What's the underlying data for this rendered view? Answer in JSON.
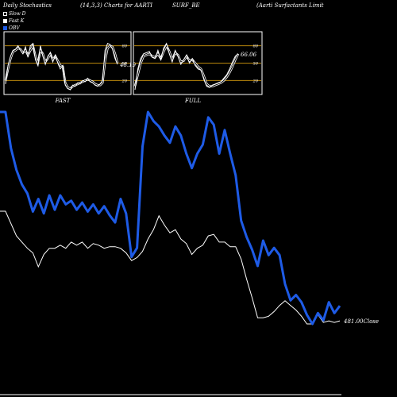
{
  "header": {
    "left": "Daily Stochastics",
    "params": "(14,3,3) Charts for AARTI",
    "symbol": "SURF_BE",
    "company": "(Aarti  Surfactants Limit"
  },
  "legend": [
    {
      "label": "Slow  D",
      "color": "#000000"
    },
    {
      "label": "Fast K",
      "color": "#ffffff"
    },
    {
      "label": "OBV",
      "color": "#1e5be6"
    }
  ],
  "colors": {
    "background": "#000000",
    "obv": "#1e5be6",
    "price": "#ffffff",
    "level_line": "#b8860b"
  },
  "chart_data": [
    {
      "type": "line",
      "title": "FAST",
      "ylim": [
        0,
        100
      ],
      "yticks": [
        80,
        50,
        20
      ],
      "levels": [
        80,
        50,
        20
      ],
      "value_label": "48.19",
      "series": [
        {
          "name": "Slow  D",
          "values": [
            20,
            40,
            58,
            70,
            72,
            76,
            74,
            68,
            72,
            64,
            72,
            80,
            62,
            50,
            72,
            66,
            52,
            58,
            66,
            56,
            62,
            54,
            46,
            44,
            16,
            8,
            6,
            10,
            12,
            14,
            16,
            18,
            20,
            22,
            20,
            18,
            14,
            12,
            12,
            16,
            54,
            76,
            80,
            78,
            66,
            50
          ]
        },
        {
          "name": "Fast K",
          "values": [
            14,
            46,
            62,
            72,
            74,
            80,
            72,
            66,
            78,
            60,
            80,
            84,
            56,
            46,
            80,
            62,
            48,
            62,
            68,
            52,
            64,
            50,
            40,
            46,
            12,
            6,
            4,
            12,
            10,
            16,
            14,
            20,
            18,
            24,
            18,
            16,
            12,
            10,
            14,
            20,
            72,
            84,
            82,
            74,
            58,
            48
          ]
        }
      ]
    },
    {
      "type": "line",
      "title": "FULL",
      "ylim": [
        0,
        100
      ],
      "yticks": [
        80,
        50,
        20
      ],
      "levels": [
        80,
        50,
        20
      ],
      "value_label": "66.06",
      "series": [
        {
          "name": "Slow  D",
          "values": [
            10,
            30,
            50,
            62,
            64,
            66,
            62,
            60,
            66,
            58,
            70,
            80,
            70,
            56,
            68,
            64,
            52,
            54,
            62,
            54,
            56,
            50,
            44,
            40,
            28,
            14,
            10,
            10,
            12,
            14,
            16,
            20,
            26,
            34,
            44,
            56,
            66
          ]
        },
        {
          "name": "Fast K",
          "values": [
            4,
            40,
            58,
            66,
            68,
            70,
            60,
            58,
            72,
            56,
            76,
            84,
            66,
            52,
            72,
            62,
            48,
            56,
            64,
            50,
            58,
            46,
            40,
            38,
            22,
            10,
            8,
            12,
            14,
            16,
            18,
            24,
            30,
            40,
            52,
            62,
            66
          ]
        }
      ]
    },
    {
      "type": "line",
      "title": "",
      "value_label": "481.00",
      "value_suffix": "Close",
      "series": [
        {
          "name": "OBV",
          "values": [
            0.9,
            0.9,
            0.7,
            0.58,
            0.5,
            0.45,
            0.35,
            0.42,
            0.34,
            0.44,
            0.36,
            0.44,
            0.39,
            0.41,
            0.36,
            0.4,
            0.35,
            0.39,
            0.34,
            0.38,
            0.33,
            0.29,
            0.42,
            0.34,
            0.1,
            0.15,
            0.71,
            0.9,
            0.85,
            0.82,
            0.77,
            0.73,
            0.82,
            0.77,
            0.67,
            0.59,
            0.67,
            0.72,
            0.87,
            0.83,
            0.67,
            0.8,
            0.67,
            0.55,
            0.3,
            0.21,
            0.14,
            0.05,
            0.19,
            0.11,
            0.15,
            0.11,
            -0.05,
            -0.14,
            -0.11,
            -0.15,
            -0.22,
            -0.27,
            -0.21,
            -0.25,
            -0.15,
            -0.21,
            -0.17
          ]
        },
        {
          "name": "Close",
          "values": [
            505,
            505,
            497,
            489,
            485,
            481,
            478,
            469,
            477,
            481,
            481,
            483,
            481,
            485,
            483,
            485,
            481,
            484,
            483,
            481,
            482,
            482,
            481,
            478,
            473,
            475,
            479,
            487,
            493,
            502,
            496,
            491,
            493,
            487,
            484,
            477,
            481,
            483,
            489,
            490,
            485,
            485,
            482,
            482,
            474,
            461,
            449,
            436,
            436,
            437,
            440,
            444,
            447,
            444,
            441,
            437,
            432,
            432,
            438,
            433,
            434,
            433,
            434
          ]
        }
      ]
    }
  ]
}
